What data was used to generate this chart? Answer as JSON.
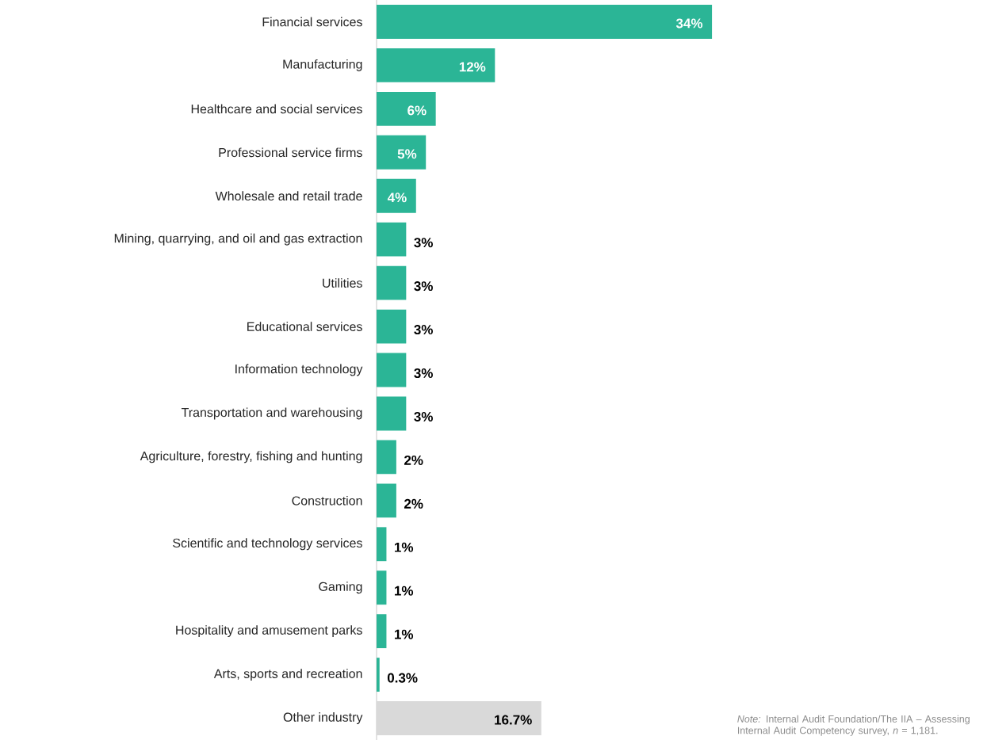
{
  "chart_data": {
    "type": "bar",
    "orientation": "horizontal",
    "categories": [
      "Financial services",
      "Manufacturing",
      "Healthcare and social services",
      "Professional service firms",
      "Wholesale and retail trade",
      "Mining, quarrying, and oil and gas extraction",
      "Utilities",
      "Educational services",
      "Information technology",
      "Transportation and warehousing",
      "Agriculture, forestry, fishing and hunting",
      "Construction",
      "Scientific and technology services",
      "Gaming",
      "Hospitality and amusement parks",
      "Arts, sports and recreation",
      "Other industry"
    ],
    "values": [
      34,
      12,
      6,
      5,
      4,
      3,
      3,
      3,
      3,
      3,
      2,
      2,
      1,
      1,
      1,
      0.3,
      16.7
    ],
    "value_labels": [
      "34%",
      "12%",
      "6%",
      "5%",
      "4%",
      "3%",
      "3%",
      "3%",
      "3%",
      "3%",
      "2%",
      "2%",
      "1%",
      "1%",
      "1%",
      "0.3%",
      "16.7%"
    ],
    "colors": [
      "#2bb596",
      "#2bb596",
      "#2bb596",
      "#2bb596",
      "#2bb596",
      "#2bb596",
      "#2bb596",
      "#2bb596",
      "#2bb596",
      "#2bb596",
      "#2bb596",
      "#2bb596",
      "#2bb596",
      "#2bb596",
      "#2bb596",
      "#2bb596",
      "#d9d9d9"
    ],
    "annotations": [
      "*Note:* Internal Audit Foundation/The IIA – Assessing Internal Audit Competency survey, *n* = 1,181."
    ]
  }
}
